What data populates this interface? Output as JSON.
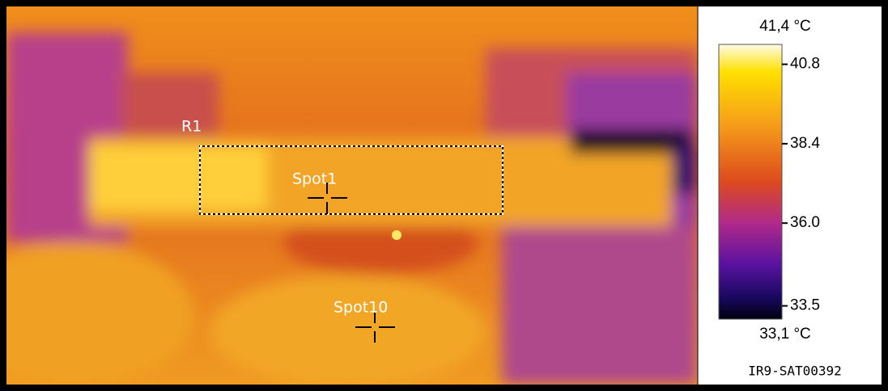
{
  "image": {
    "regions": [
      {
        "label": "R1"
      }
    ],
    "spots": [
      {
        "label": "Spot1"
      },
      {
        "label": "Spot10"
      }
    ]
  },
  "scale": {
    "max": {
      "value": 41.4,
      "label": "41,4 °C"
    },
    "min": {
      "value": 33.1,
      "label": "33,1 °C"
    },
    "ticks": [
      {
        "value": 40.8,
        "label": "40.8"
      },
      {
        "value": 38.4,
        "label": "38.4"
      },
      {
        "value": 36.0,
        "label": "36.0"
      },
      {
        "value": 33.5,
        "label": "33.5"
      }
    ]
  },
  "file_name": "IR9-SAT00392"
}
